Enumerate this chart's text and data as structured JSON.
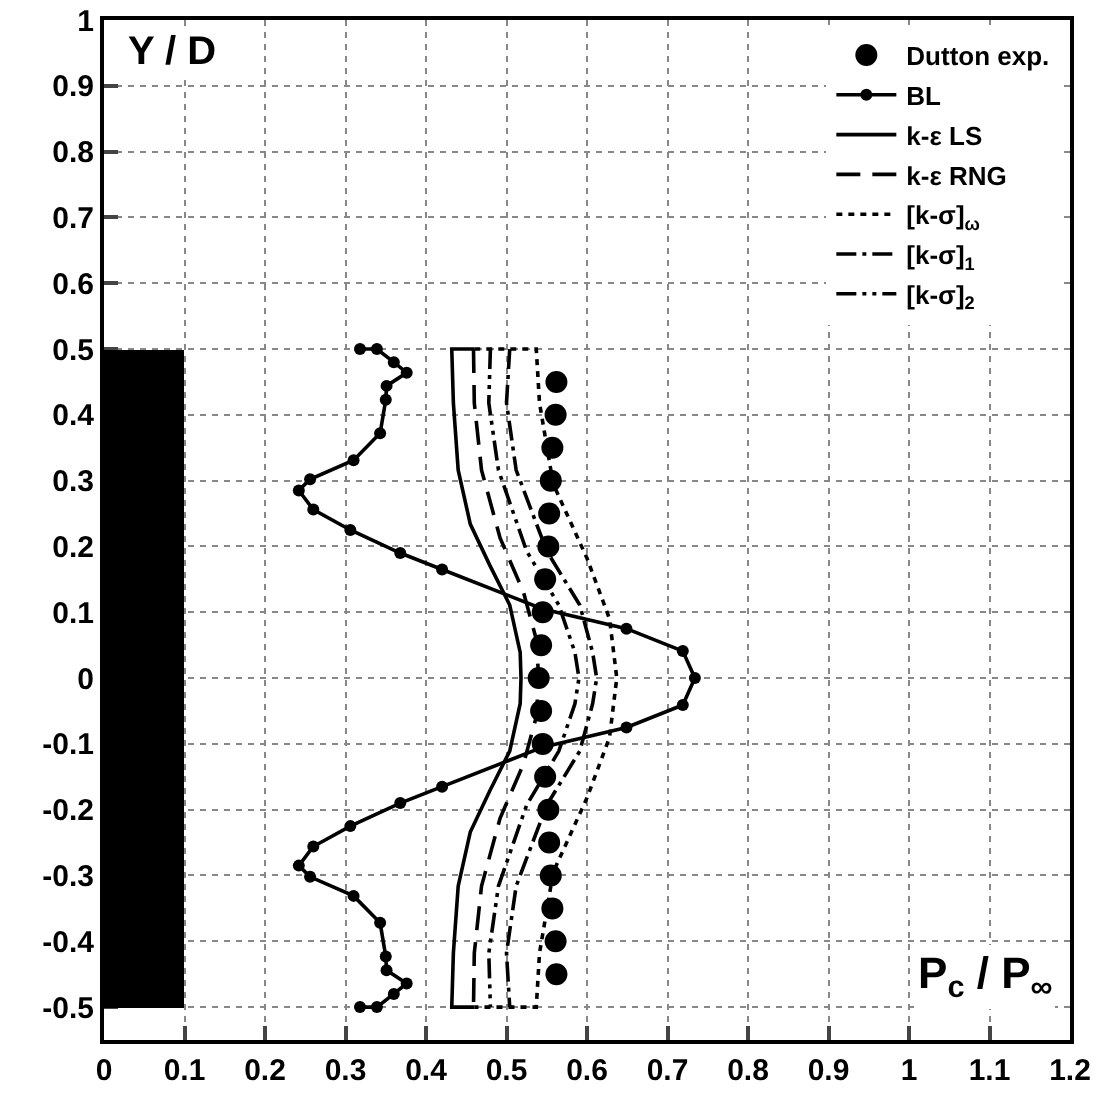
{
  "chart_data": {
    "type": "line",
    "xlabel": "P$_{c}$ / P$_{∞}$",
    "ylabel": "Y / D",
    "xlim": [
      0,
      1.2
    ],
    "xticks": [
      0,
      0.1,
      0.2,
      0.3,
      0.4,
      0.5,
      0.6,
      0.7,
      0.8,
      0.9,
      1,
      1.1,
      1.2
    ],
    "ylim": [
      -0.55,
      1
    ],
    "yticks": [
      -0.5,
      -0.4,
      -0.3,
      -0.2,
      -0.1,
      0,
      0.1,
      0.2,
      0.3,
      0.4,
      0.5,
      0.6,
      0.7,
      0.8,
      0.9,
      1
    ],
    "grid": true,
    "legend": "top right",
    "series": [
      {
        "name": "Dutton exp.",
        "type": "scatter",
        "marker": "circle",
        "color": "#000000",
        "x": [
          0.562,
          0.561,
          0.557,
          0.555,
          0.553,
          0.552,
          0.548,
          0.545,
          0.543,
          0.54,
          0.543,
          0.545,
          0.548,
          0.552,
          0.553,
          0.555,
          0.557,
          0.561,
          0.562
        ],
        "values": [
          0.45,
          0.4,
          0.35,
          0.3,
          0.25,
          0.2,
          0.15,
          0.1,
          0.05,
          0,
          -0.05,
          -0.1,
          -0.15,
          -0.2,
          -0.25,
          -0.3,
          -0.35,
          -0.4,
          -0.45
        ]
      },
      {
        "name": "BL",
        "marker": "circle",
        "line_style": "solid",
        "color": "#000000",
        "x": [
          0.318,
          0.339,
          0.36,
          0.376,
          0.351,
          0.35,
          0.343,
          0.31,
          0.256,
          0.242,
          0.26,
          0.306,
          0.368,
          0.42,
          0.545,
          0.649,
          0.719,
          0.734,
          0.719,
          0.649,
          0.545,
          0.42,
          0.368,
          0.306,
          0.26,
          0.242,
          0.256,
          0.31,
          0.343,
          0.35,
          0.351,
          0.376,
          0.36,
          0.339,
          0.318
        ],
        "values": [
          0.5,
          0.5,
          0.48,
          0.464,
          0.444,
          0.423,
          0.372,
          0.331,
          0.302,
          0.285,
          0.256,
          0.225,
          0.19,
          0.165,
          0.105,
          0.075,
          0.041,
          0,
          -0.041,
          -0.075,
          -0.105,
          -0.165,
          -0.19,
          -0.225,
          -0.256,
          -0.285,
          -0.302,
          -0.331,
          -0.372,
          -0.423,
          -0.444,
          -0.464,
          -0.48,
          -0.5,
          -0.5
        ]
      },
      {
        "name": "k-ε LS",
        "line_style": "solid",
        "color": "#000000",
        "x": [
          0.46,
          0.432,
          0.434,
          0.44,
          0.455,
          0.479,
          0.504,
          0.517,
          0.518,
          0.517,
          0.504,
          0.479,
          0.455,
          0.44,
          0.434,
          0.432,
          0.46
        ],
        "values": [
          0.5,
          0.5,
          0.418,
          0.316,
          0.234,
          0.172,
          0.111,
          0.039,
          0,
          -0.039,
          -0.111,
          -0.172,
          -0.234,
          -0.316,
          -0.418,
          -0.5,
          -0.5
        ]
      },
      {
        "name": "k-ε RNG",
        "line_style": "dashed",
        "color": "#000000",
        "x": [
          0.459,
          0.46,
          0.469,
          0.492,
          0.521,
          0.537,
          0.54,
          0.537,
          0.521,
          0.492,
          0.469,
          0.46,
          0.459
        ],
        "values": [
          0.5,
          0.418,
          0.316,
          0.213,
          0.131,
          0.059,
          0,
          -0.059,
          -0.131,
          -0.213,
          -0.316,
          -0.418,
          -0.5
        ]
      },
      {
        "name": "[k-σ]$_{ω}$",
        "line_style": "dotted",
        "color": "#000000",
        "x": [
          0.46,
          0.537,
          0.541,
          0.558,
          0.6,
          0.628,
          0.637,
          0.628,
          0.6,
          0.558,
          0.541,
          0.537,
          0.46
        ],
        "values": [
          0.5,
          0.5,
          0.418,
          0.295,
          0.182,
          0.09,
          0,
          -0.09,
          -0.182,
          -0.295,
          -0.418,
          -0.5,
          -0.5
        ]
      },
      {
        "name": "[k-σ]$_{1}$",
        "line_style": "dashdot",
        "color": "#000000",
        "x": [
          0.504,
          0.5,
          0.512,
          0.55,
          0.591,
          0.607,
          0.612,
          0.607,
          0.591,
          0.55,
          0.512,
          0.5,
          0.504
        ],
        "values": [
          0.5,
          0.418,
          0.316,
          0.193,
          0.111,
          0.039,
          0,
          -0.039,
          -0.111,
          -0.193,
          -0.316,
          -0.418,
          -0.5
        ]
      },
      {
        "name": "[k-σ]$_{2}$",
        "line_style": "dashdotdot",
        "color": "#000000",
        "x": [
          0.48,
          0.478,
          0.49,
          0.525,
          0.565,
          0.585,
          0.59,
          0.585,
          0.565,
          0.525,
          0.49,
          0.478,
          0.48
        ],
        "values": [
          0.5,
          0.418,
          0.316,
          0.193,
          0.111,
          0.039,
          0,
          -0.039,
          -0.111,
          -0.193,
          -0.316,
          -0.418,
          -0.5
        ]
      }
    ]
  }
}
